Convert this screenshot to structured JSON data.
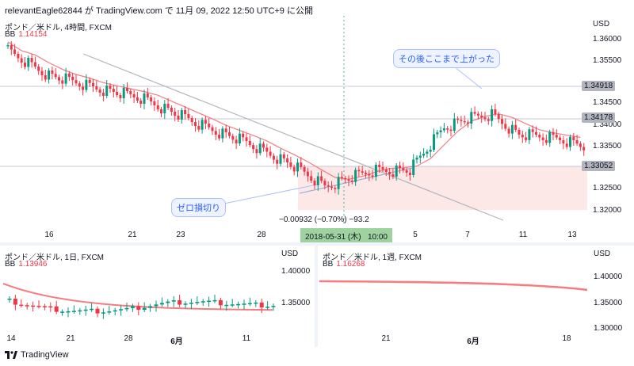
{
  "header": "relevantEagle62844 が TradingView.com で 11月 09, 2022 12:50 UTC+9 に公開",
  "colors": {
    "up": "#089981",
    "down": "#f23645",
    "bb": "#f77c80",
    "grid": "#e0e3eb",
    "band": "#fde8e8"
  },
  "main": {
    "title": "ポンド／米ドル, 4時間, FXCM",
    "bb_label": "BB",
    "bb_value": "1.14154",
    "currency": "USD",
    "y_ticks": [
      "1.36000",
      "1.35500",
      "1.34500",
      "1.34000",
      "1.33500",
      "1.32500",
      "1.32000"
    ],
    "price_tags": [
      "1.34918",
      "1.34178",
      "1.33052"
    ],
    "x_ticks": [
      "16",
      "21",
      "23",
      "28",
      "5",
      "7",
      "11",
      "13"
    ],
    "callout_top": "その後ここまで上がった",
    "callout_bottom": "ゼロ損切り",
    "measure": "−0.00932 (−0.70%) −93.2",
    "crosshair_date": "2018-05-31 (木)",
    "crosshair_time": "10:00"
  },
  "daily": {
    "title": "ポンド／米ドル, 1日, FXCM",
    "bb_label": "BB",
    "bb_value": "1.13946",
    "currency": "USD",
    "y_ticks": [
      "1.40000",
      "1.35000"
    ],
    "x_ticks": [
      "14",
      "21",
      "28",
      "6月",
      "11"
    ]
  },
  "weekly": {
    "title": "ポンド／米ドル, 1週, FXCM",
    "bb_label": "BB",
    "bb_value": "1.16268",
    "currency": "USD",
    "y_ticks": [
      "1.40000",
      "1.35000",
      "1.30000"
    ],
    "x_ticks": [
      "21",
      "6月",
      "18"
    ]
  },
  "footer": {
    "brand": "TradingView",
    "logo_icon": "tradingview-logo-icon"
  }
}
